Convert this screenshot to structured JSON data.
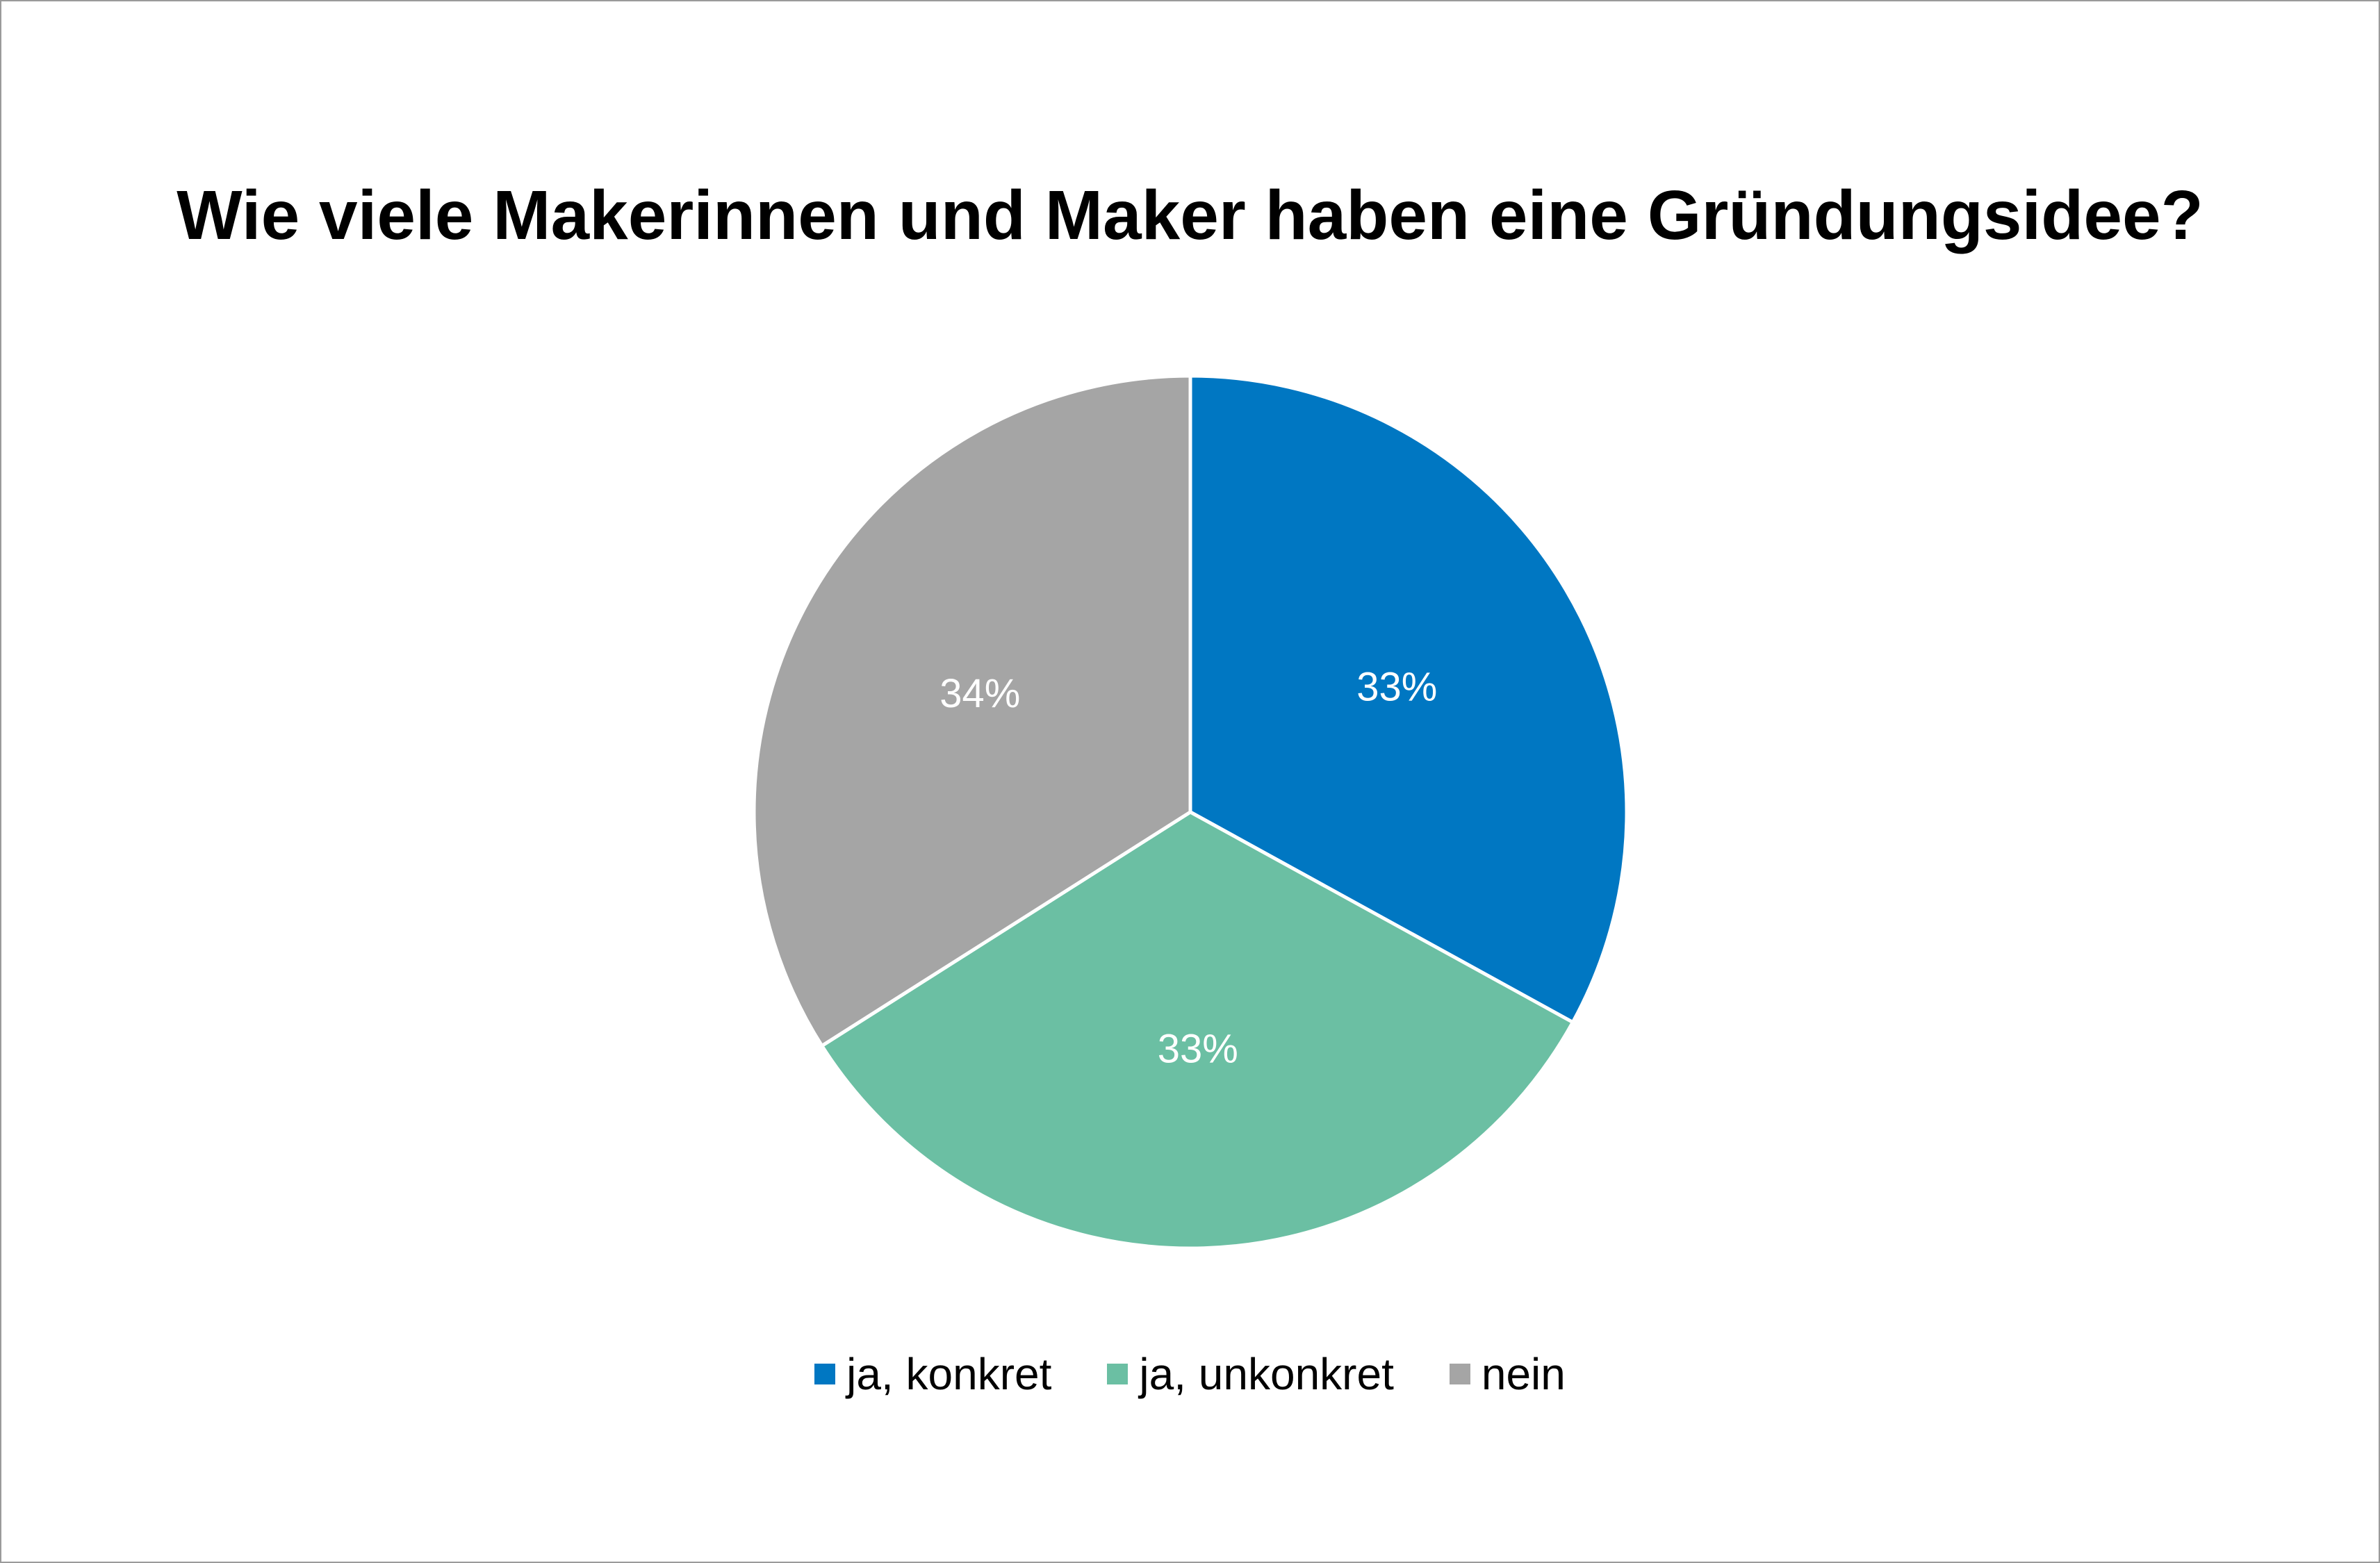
{
  "chart_data": {
    "type": "pie",
    "title": "Wie viele Makerinnen und Maker haben eine Gründungsidee?",
    "slices": [
      {
        "label": "ja, konkret",
        "value": 33,
        "display": "33%",
        "color": "#0077C2"
      },
      {
        "label": "ja, unkonkret",
        "value": 33,
        "display": "33%",
        "color": "#6BBFA3"
      },
      {
        "label": "nein",
        "value": 34,
        "display": "34%",
        "color": "#A5A5A5"
      }
    ],
    "legend_position": "bottom",
    "start_angle": "top, clockwise"
  }
}
